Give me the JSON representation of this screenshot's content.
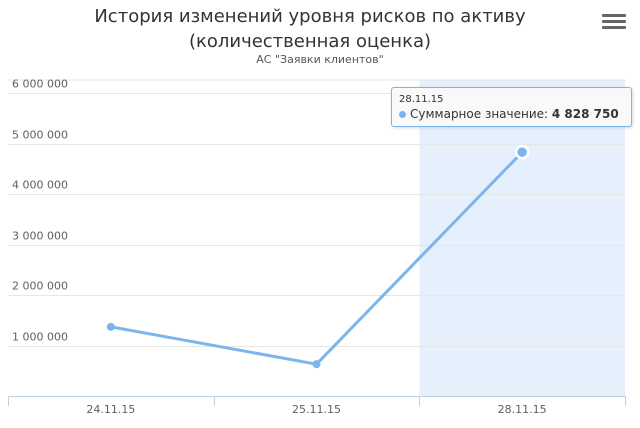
{
  "chart_data": {
    "type": "line",
    "title": "История изменений уровня рисков по активу (количественная оценка)",
    "subtitle": "АС \"Заявки клиентов\"",
    "categories": [
      "24.11.15",
      "25.11.15",
      "28.11.15"
    ],
    "series": [
      {
        "values": [
          1370000,
          630000,
          4828750
        ]
      }
    ],
    "y_tick_labels": [
      "1 000 000",
      "2 000 000",
      "3 000 000",
      "4 000 000",
      "5 000 000",
      "6 000 000"
    ],
    "y_ticks": [
      1000000,
      2000000,
      3000000,
      4000000,
      5000000,
      6000000
    ],
    "ylim": [
      0,
      6000000
    ],
    "grid": true,
    "highlighted_category": "28.11.15",
    "colors": {
      "line": "#7cb5ec",
      "highlight": "#e6f0fc",
      "grid": "#e6e6e6"
    }
  },
  "tooltip": {
    "date": "28.11.15",
    "label": "Суммарное значение:",
    "value": "4 828 750"
  },
  "menu": {
    "icon": "menu-icon"
  }
}
